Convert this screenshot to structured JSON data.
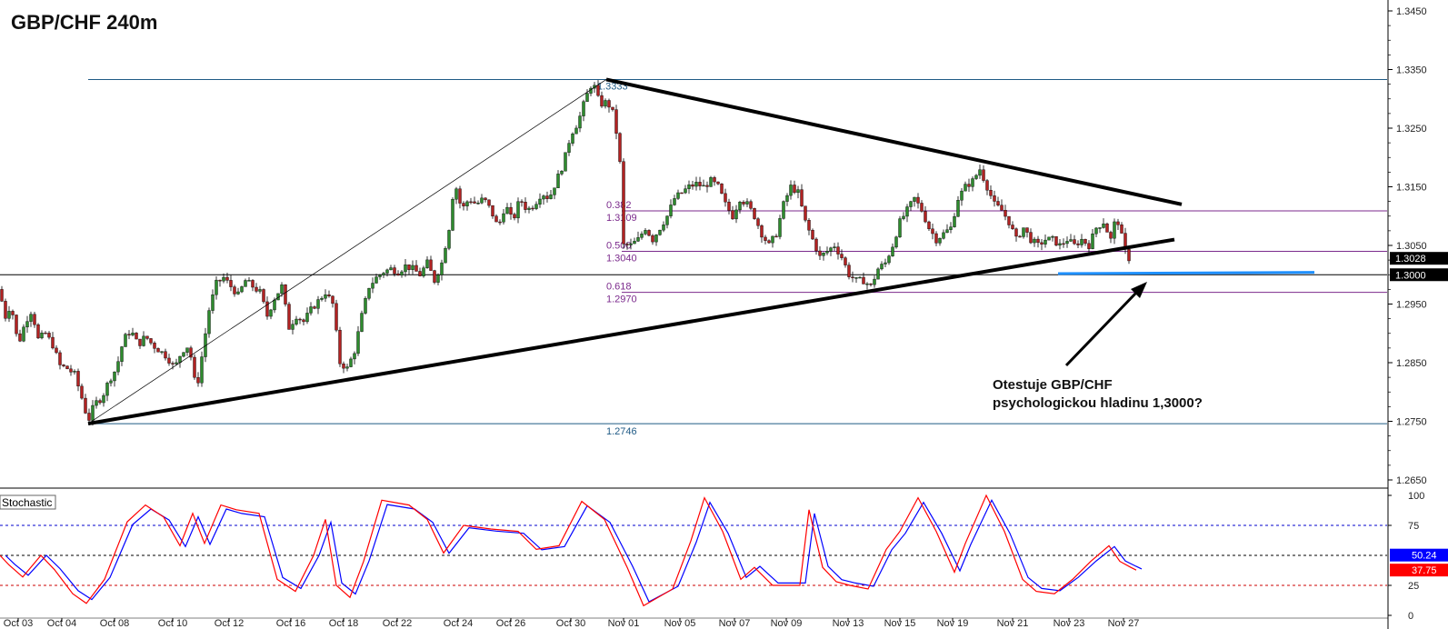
{
  "chart_data": {
    "type": "candlestick",
    "title": "GBP/CHF 240m",
    "price_axis": {
      "ticks": [
        "1.3450",
        "1.3350",
        "1.3250",
        "1.3150",
        "1.3050",
        "1.2950",
        "1.2850",
        "1.2750",
        "1.2650"
      ],
      "range": [
        1.2635,
        1.346
      ]
    },
    "x_labels": [
      "Oct 03",
      "Oct 04",
      "Oct 08",
      "Oct 10",
      "Oct 12",
      "Oct 16",
      "Oct 18",
      "Oct 22",
      "Oct 24",
      "Oct 26",
      "Oct 30",
      "Nov 01",
      "Nov 05",
      "Nov 07",
      "Nov 09",
      "Nov 13",
      "Nov 15",
      "Nov 19",
      "Nov 21",
      "Nov 23",
      "Nov 27"
    ],
    "price_path": [
      [
        0,
        1.2975
      ],
      [
        5,
        1.2925
      ],
      [
        12,
        1.295
      ],
      [
        20,
        1.288
      ],
      [
        28,
        1.292
      ],
      [
        35,
        1.294
      ],
      [
        42,
        1.289
      ],
      [
        50,
        1.29
      ],
      [
        58,
        1.288
      ],
      [
        66,
        1.2845
      ],
      [
        74,
        1.284
      ],
      [
        82,
        1.283
      ],
      [
        90,
        1.279
      ],
      [
        97,
        1.275
      ],
      [
        104,
        1.278
      ],
      [
        112,
        1.279
      ],
      [
        120,
        1.282
      ],
      [
        128,
        1.284
      ],
      [
        136,
        1.289
      ],
      [
        144,
        1.2905
      ],
      [
        152,
        1.288
      ],
      [
        160,
        1.2895
      ],
      [
        168,
        1.288
      ],
      [
        176,
        1.287
      ],
      [
        184,
        1.286
      ],
      [
        192,
        1.284
      ],
      [
        200,
        1.287
      ],
      [
        208,
        1.288
      ],
      [
        216,
        1.28
      ],
      [
        222,
        1.286
      ],
      [
        230,
        1.294
      ],
      [
        238,
        1.2985
      ],
      [
        246,
        1.2995
      ],
      [
        254,
        1.298
      ],
      [
        262,
        1.2965
      ],
      [
        270,
        1.299
      ],
      [
        278,
        1.298
      ],
      [
        286,
        1.297
      ],
      [
        294,
        1.293
      ],
      [
        302,
        1.296
      ],
      [
        310,
        1.298
      ],
      [
        318,
        1.291
      ],
      [
        326,
        1.293
      ],
      [
        334,
        1.292
      ],
      [
        342,
        1.294
      ],
      [
        350,
        1.2955
      ],
      [
        358,
        1.297
      ],
      [
        366,
        1.295
      ],
      [
        374,
        1.285
      ],
      [
        382,
        1.284
      ],
      [
        390,
        1.287
      ],
      [
        398,
        1.293
      ],
      [
        406,
        1.298
      ],
      [
        414,
        1.2995
      ],
      [
        422,
        1.3005
      ],
      [
        430,
        1.301
      ],
      [
        438,
        1.3005
      ],
      [
        446,
        1.3015
      ],
      [
        454,
        1.301
      ],
      [
        462,
        1.3
      ],
      [
        470,
        1.302
      ],
      [
        478,
        1.299
      ],
      [
        486,
        1.302
      ],
      [
        494,
        1.308
      ],
      [
        500,
        1.316
      ],
      [
        508,
        1.311
      ],
      [
        516,
        1.313
      ],
      [
        524,
        1.312
      ],
      [
        532,
        1.313
      ],
      [
        540,
        1.311
      ],
      [
        548,
        1.308
      ],
      [
        556,
        1.312
      ],
      [
        564,
        1.309
      ],
      [
        572,
        1.313
      ],
      [
        580,
        1.311
      ],
      [
        588,
        1.312
      ],
      [
        596,
        1.314
      ],
      [
        604,
        1.313
      ],
      [
        612,
        1.316
      ],
      [
        620,
        1.319
      ],
      [
        628,
        1.324
      ],
      [
        636,
        1.326
      ],
      [
        644,
        1.33
      ],
      [
        652,
        1.333
      ],
      [
        660,
        1.329
      ],
      [
        668,
        1.3295
      ],
      [
        676,
        1.327
      ],
      [
        682,
        1.319
      ],
      [
        686,
        1.305
      ],
      [
        694,
        1.305
      ],
      [
        702,
        1.306
      ],
      [
        710,
        1.308
      ],
      [
        718,
        1.306
      ],
      [
        726,
        1.308
      ],
      [
        734,
        1.31
      ],
      [
        742,
        1.313
      ],
      [
        750,
        1.314
      ],
      [
        758,
        1.315
      ],
      [
        766,
        1.3155
      ],
      [
        774,
        1.315
      ],
      [
        782,
        1.316
      ],
      [
        790,
        1.315
      ],
      [
        798,
        1.312
      ],
      [
        806,
        1.31
      ],
      [
        814,
        1.313
      ],
      [
        822,
        1.312
      ],
      [
        830,
        1.31
      ],
      [
        838,
        1.307
      ],
      [
        846,
        1.305
      ],
      [
        854,
        1.307
      ],
      [
        862,
        1.312
      ],
      [
        870,
        1.315
      ],
      [
        878,
        1.314
      ],
      [
        886,
        1.309
      ],
      [
        894,
        1.306
      ],
      [
        902,
        1.303
      ],
      [
        910,
        1.304
      ],
      [
        918,
        1.305
      ],
      [
        926,
        1.303
      ],
      [
        934,
        1.3
      ],
      [
        942,
        1.299
      ],
      [
        950,
        1.299
      ],
      [
        958,
        1.298
      ],
      [
        966,
        1.301
      ],
      [
        974,
        1.302
      ],
      [
        982,
        1.305
      ],
      [
        990,
        1.309
      ],
      [
        998,
        1.311
      ],
      [
        1006,
        1.313
      ],
      [
        1014,
        1.311
      ],
      [
        1022,
        1.308
      ],
      [
        1030,
        1.306
      ],
      [
        1038,
        1.307
      ],
      [
        1046,
        1.308
      ],
      [
        1054,
        1.313
      ],
      [
        1062,
        1.315
      ],
      [
        1070,
        1.316
      ],
      [
        1078,
        1.318
      ],
      [
        1086,
        1.315
      ],
      [
        1094,
        1.312
      ],
      [
        1102,
        1.311
      ],
      [
        1110,
        1.309
      ],
      [
        1118,
        1.306
      ],
      [
        1126,
        1.308
      ],
      [
        1134,
        1.306
      ],
      [
        1142,
        1.305
      ],
      [
        1150,
        1.306
      ],
      [
        1158,
        1.306
      ],
      [
        1166,
        1.305
      ],
      [
        1174,
        1.306
      ],
      [
        1182,
        1.305
      ],
      [
        1190,
        1.306
      ],
      [
        1198,
        1.305
      ],
      [
        1206,
        1.308
      ],
      [
        1214,
        1.309
      ],
      [
        1222,
        1.306
      ],
      [
        1228,
        1.31
      ],
      [
        1232,
        1.308
      ],
      [
        1236,
        1.305
      ],
      [
        1240,
        1.3028
      ]
    ],
    "fib_lines": [
      {
        "value": 1.3333,
        "label": "1.3333",
        "color": "#1f5a85"
      },
      {
        "value": 1.3109,
        "label": "0.382",
        "value_label": "1.3109",
        "color": "#7b2a8c"
      },
      {
        "value": 1.304,
        "label": "0.500",
        "value_label": "1.3040",
        "color": "#7b2a8c"
      },
      {
        "value": 1.297,
        "label": "0.618",
        "value_label": "1.2970",
        "color": "#7b2a8c"
      },
      {
        "value": 1.2746,
        "label": "1.2746",
        "color": "#1f5a85"
      }
    ],
    "support_line": {
      "value": 1.3,
      "label": "1.3000"
    },
    "current_price": {
      "value": 1.3028,
      "label": "1.3028"
    },
    "annotation": {
      "line1": "Otestuje GBP/CHF",
      "line2": "psychologickou hladinu 1,3000?"
    },
    "indicator": {
      "name": "Stochastic",
      "ticks": [
        "100",
        "75",
        "25",
        "0"
      ],
      "levels": [
        75,
        50,
        25
      ],
      "k_label": "50.24",
      "d_label": "37.75",
      "k_color": "#0000ff",
      "d_color": "#ff0000"
    },
    "colors": {
      "up": "#2e8b2e",
      "down": "#b22222",
      "trendline": "#000000",
      "blue_level": "#1e90ff"
    }
  }
}
